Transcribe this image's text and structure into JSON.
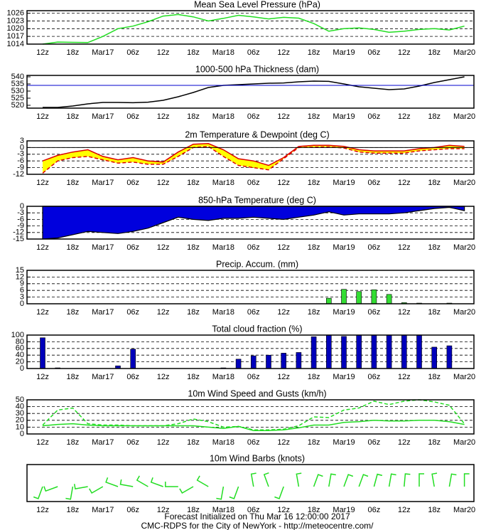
{
  "chart_data": [
    {
      "type": "line",
      "title": "Mean Sea Level Pressure (hPa)",
      "categories": [
        "12z",
        null,
        "18z",
        null,
        "Mar17",
        null,
        "06z",
        null,
        "12z",
        null,
        "18z",
        null,
        "Mar18",
        null,
        "06z",
        null,
        "12z",
        null,
        "18z",
        null,
        "Mar19",
        null,
        "06z",
        null,
        "12z",
        null,
        "18z",
        null,
        "Mar20"
      ],
      "ylim": [
        1014,
        1027
      ],
      "yticks": [
        1014,
        1017,
        1020,
        1023,
        1026
      ],
      "grid": true,
      "series": [
        {
          "color": "#22dd22",
          "values": [
            1014,
            1014.8,
            1014.7,
            1014.6,
            1017,
            1020,
            1021,
            1022.7,
            1024.9,
            1025.5,
            1024.6,
            1023,
            1024,
            1025.2,
            1024.6,
            1023.8,
            1024.4,
            1024.1,
            1022,
            1019,
            1020,
            1020.3,
            1019.7,
            1018.6,
            1019,
            1019.7,
            1020,
            1019.5,
            1021
          ]
        }
      ]
    },
    {
      "type": "line",
      "title": "1000-500 hPa Thickness (dam)",
      "categories": [
        "12z",
        null,
        "18z",
        null,
        "Mar17",
        null,
        "06z",
        null,
        "12z",
        null,
        "18z",
        null,
        "Mar18",
        null,
        "06z",
        null,
        "12z",
        null,
        "18z",
        null,
        "Mar19",
        null,
        "06z",
        null,
        "12z",
        null,
        "18z",
        null,
        "Mar20"
      ],
      "ylim": [
        518,
        541
      ],
      "yticks": [
        520,
        525,
        530,
        535,
        540
      ],
      "grid": false,
      "hline": {
        "value": 534,
        "color": "#0000cc"
      },
      "series": [
        {
          "color": "#000000",
          "values": [
            518.5,
            518.5,
            519.5,
            521,
            522,
            522,
            521.8,
            522.2,
            523.5,
            526,
            529,
            532.5,
            534,
            534.5,
            535,
            535.5,
            535.7,
            536.5,
            537,
            536.8,
            535,
            533,
            532,
            531,
            531.5,
            533.5,
            536,
            538,
            540
          ]
        }
      ]
    },
    {
      "type": "range",
      "title": "2m Temperature & Dewpoint (deg C)",
      "categories": [
        "12z",
        null,
        "18z",
        null,
        "Mar17",
        null,
        "06z",
        null,
        "12z",
        null,
        "18z",
        null,
        "Mar18",
        null,
        "06z",
        null,
        "12z",
        null,
        "18z",
        null,
        "Mar19",
        null,
        "06z",
        null,
        "12z",
        null,
        "18z",
        null,
        "Mar20"
      ],
      "ylim": [
        -12,
        3
      ],
      "yticks": [
        3,
        0,
        -3,
        -6,
        -9,
        -12
      ],
      "grid": true,
      "fill": "#ffff00",
      "hline": {
        "value": 0,
        "color": "#000000"
      },
      "series": [
        {
          "color": "#dd0000",
          "style": "solid",
          "values": [
            -6,
            -3.5,
            -2,
            -1,
            -4,
            -5.5,
            -4.5,
            -6,
            -6.5,
            -2,
            1.5,
            1.8,
            -1,
            -5,
            -6,
            -8,
            -4.5,
            0.5,
            1,
            1,
            0.5,
            -1,
            -1.5,
            -1.5,
            -1.5,
            -0.5,
            0,
            1,
            0.5
          ]
        },
        {
          "color": "#dd0000",
          "style": "dashed",
          "values": [
            -11.5,
            -6,
            -4.5,
            -4,
            -5.5,
            -7,
            -6.5,
            -7.5,
            -7.5,
            -4,
            0,
            0.5,
            -4,
            -8,
            -9,
            -10,
            -5,
            0,
            0.2,
            0.3,
            -0.2,
            -2,
            -2.5,
            -2.5,
            -2.5,
            -1.5,
            -1,
            -0.5,
            -0.5
          ]
        }
      ]
    },
    {
      "type": "area",
      "title": "850-hPa Temperature (deg C)",
      "categories": [
        "12z",
        null,
        "18z",
        null,
        "Mar17",
        null,
        "06z",
        null,
        "12z",
        null,
        "18z",
        null,
        "Mar18",
        null,
        "06z",
        null,
        "12z",
        null,
        "18z",
        null,
        "Mar19",
        null,
        "06z",
        null,
        "12z",
        null,
        "18z",
        null,
        "Mar20"
      ],
      "ylim": [
        -15,
        0
      ],
      "yticks": [
        0,
        -3,
        -6,
        -9,
        -12,
        -15
      ],
      "grid": true,
      "series": [
        {
          "color": "#0000dd",
          "values": [
            -15,
            -14.5,
            -13,
            -11.5,
            -12,
            -12.5,
            -11.5,
            -10,
            -7.5,
            -5,
            -6,
            -6.5,
            -5.5,
            -5.5,
            -5,
            -5.5,
            -6,
            -5,
            -4,
            -2.5,
            -4,
            -3.5,
            -3.5,
            -3.5,
            -3,
            -2,
            -1,
            -0.5,
            -2
          ]
        }
      ]
    },
    {
      "type": "bar",
      "title": "Precip. Accum. (mm)",
      "categories": [
        "12z",
        null,
        "18z",
        null,
        "Mar17",
        null,
        "06z",
        null,
        "12z",
        null,
        "18z",
        null,
        "Mar18",
        null,
        "06z",
        null,
        "12z",
        null,
        "18z",
        null,
        "Mar19",
        null,
        "06z",
        null,
        "12z",
        null,
        "18z",
        null,
        "Mar20"
      ],
      "ylim": [
        0,
        15
      ],
      "yticks": [
        0,
        3,
        6,
        9,
        12,
        15
      ],
      "grid": true,
      "series": [
        {
          "color": "#33dd33",
          "values": [
            0,
            0,
            0,
            0,
            0,
            0,
            0,
            0,
            0,
            0,
            0,
            0,
            0,
            0,
            0,
            0,
            0,
            0,
            0,
            2.5,
            6.5,
            5.5,
            6.3,
            4.2,
            0.5,
            0.3,
            0,
            0.3,
            0
          ]
        }
      ]
    },
    {
      "type": "bar",
      "title": "Total cloud fraction (%)",
      "categories": [
        "12z",
        null,
        "18z",
        null,
        "Mar17",
        null,
        "06z",
        null,
        "12z",
        null,
        "18z",
        null,
        "Mar18",
        null,
        "06z",
        null,
        "12z",
        null,
        "18z",
        null,
        "Mar19",
        null,
        "06z",
        null,
        "12z",
        null,
        "18z",
        null,
        "Mar20"
      ],
      "ylim": [
        0,
        100
      ],
      "yticks": [
        0,
        20,
        40,
        60,
        80,
        100
      ],
      "grid": true,
      "series": [
        {
          "color": "#0000bb",
          "values": [
            92,
            2,
            0,
            0,
            0,
            8,
            58,
            0,
            0,
            0,
            0,
            0,
            2,
            28,
            38,
            40,
            46,
            48,
            95,
            100,
            96,
            100,
            100,
            100,
            100,
            100,
            64,
            68,
            0
          ]
        }
      ]
    },
    {
      "type": "line",
      "title": "10m Wind Speed and Gusts (km/h)",
      "categories": [
        "12z",
        null,
        "18z",
        null,
        "Mar17",
        null,
        "06z",
        null,
        "12z",
        null,
        "18z",
        null,
        "Mar18",
        null,
        "06z",
        null,
        "12z",
        null,
        "18z",
        null,
        "Mar19",
        null,
        "06z",
        null,
        "12z",
        null,
        "18z",
        null,
        "Mar20"
      ],
      "ylim": [
        0,
        50
      ],
      "yticks": [
        0,
        10,
        20,
        30,
        40,
        50
      ],
      "grid": true,
      "series": [
        {
          "color": "#22dd22",
          "style": "dashed",
          "values": [
            13,
            35,
            38,
            15,
            13,
            13,
            12,
            12,
            12,
            15,
            22,
            18,
            10,
            11,
            6,
            6,
            7,
            12,
            25,
            24,
            35,
            38,
            48,
            43,
            48,
            50,
            47,
            42,
            15
          ]
        },
        {
          "color": "#22dd22",
          "style": "solid",
          "values": [
            12,
            14,
            15,
            13,
            12,
            12,
            12,
            12,
            12,
            12,
            12,
            10,
            8,
            11,
            5,
            5,
            6,
            9,
            13,
            13,
            17,
            18,
            20,
            19,
            19,
            20,
            20,
            18,
            14
          ]
        }
      ]
    },
    {
      "type": "barbs",
      "title": "10m Wind Barbs  (knots)",
      "categories": [
        "12z",
        null,
        "18z",
        null,
        "Mar17",
        null,
        "06z",
        null,
        "12z",
        null,
        "18z",
        null,
        "Mar18",
        null,
        "06z",
        null,
        "12z",
        null,
        "18z",
        null,
        "Mar19",
        null,
        "06z",
        null,
        "12z",
        null,
        "18z",
        null,
        "Mar20"
      ],
      "color": "#22dd22",
      "directions": [
        200,
        250,
        190,
        260,
        240,
        290,
        280,
        300,
        290,
        270,
        240,
        300,
        190,
        200,
        350,
        340,
        200,
        350,
        20,
        10,
        20,
        20,
        15,
        10,
        5,
        0,
        350,
        10,
        0
      ]
    }
  ],
  "footer": [
    "Forecast Initialized on Thu Mar 16 12:00:00 2017",
    "CMC-RDPS for the City of NewYork - http://meteocentre.com/"
  ]
}
